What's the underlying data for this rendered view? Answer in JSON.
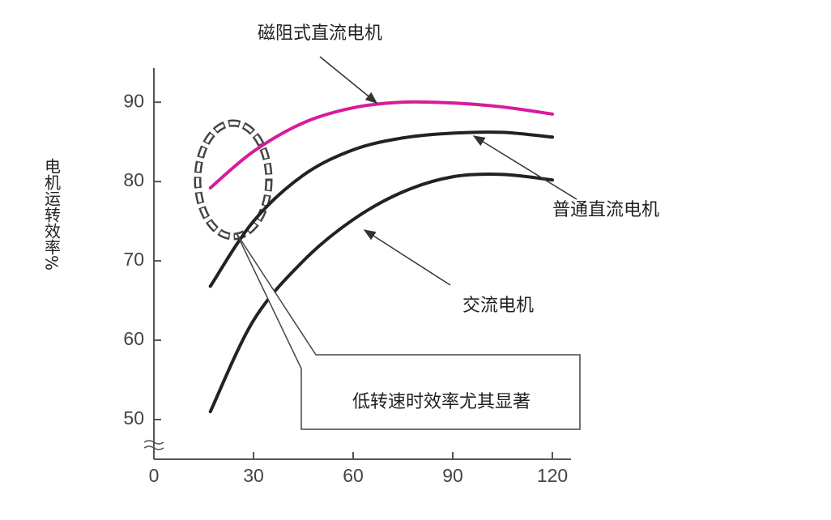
{
  "chart_data": {
    "type": "line",
    "y_label": "电机运转效率%",
    "x": [
      17,
      30,
      45,
      60,
      75,
      90,
      105,
      120
    ],
    "series": [
      {
        "name": "磁阻式直流电机",
        "color": "#d81b9c",
        "values": [
          79.2,
          83.8,
          87.4,
          89.3,
          90,
          89.9,
          89.4,
          88.5
        ]
      },
      {
        "name": "普通直流电机",
        "color": "#222222",
        "values": [
          66.8,
          75,
          80.8,
          84,
          85.5,
          86.1,
          86.2,
          85.6
        ]
      },
      {
        "name": "交流电机",
        "color": "#222222",
        "values": [
          51,
          62.5,
          70,
          75.2,
          78.7,
          80.6,
          80.9,
          80.2
        ]
      }
    ],
    "annotations": [
      "低转速时效率尤其显著"
    ],
    "xlim": [
      0,
      125
    ],
    "xticks": [
      0,
      30,
      60,
      90,
      120
    ],
    "ylim": [
      45,
      94
    ],
    "yticks": [
      50,
      60,
      70,
      80,
      90
    ]
  }
}
